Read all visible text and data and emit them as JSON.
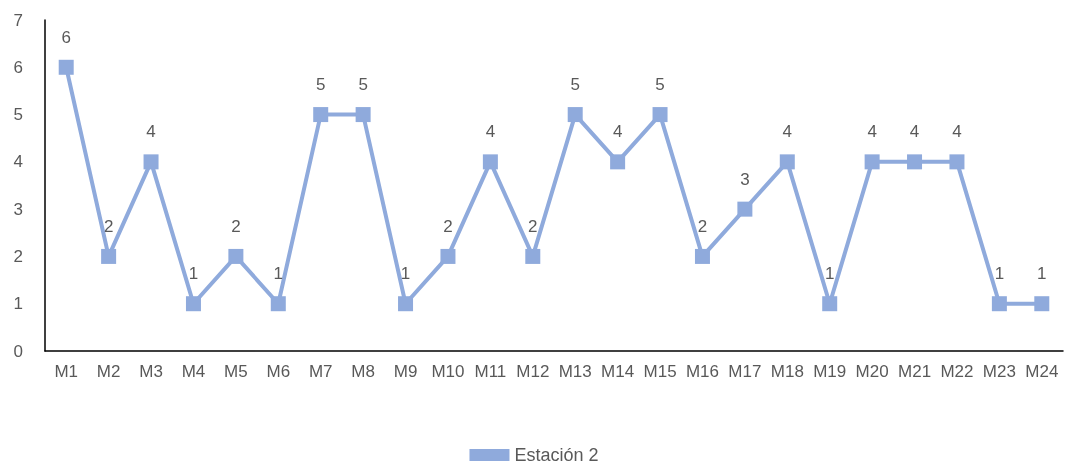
{
  "chart_data": {
    "type": "line",
    "categories": [
      "M1",
      "M2",
      "M3",
      "M4",
      "M5",
      "M6",
      "M7",
      "M8",
      "M9",
      "M10",
      "M11",
      "M12",
      "M13",
      "M14",
      "M15",
      "M16",
      "M17",
      "M18",
      "M19",
      "M20",
      "M21",
      "M22",
      "M23",
      "M24"
    ],
    "series": [
      {
        "name": "Estación 2",
        "color": "#8faadc",
        "values": [
          6,
          2,
          4,
          1,
          2,
          1,
          5,
          5,
          1,
          2,
          4,
          2,
          5,
          4,
          5,
          2,
          3,
          4,
          1,
          4,
          4,
          4,
          1,
          1
        ]
      }
    ],
    "ylim": [
      0,
      7
    ],
    "yticks": [
      0,
      1,
      2,
      3,
      4,
      5,
      6,
      7
    ],
    "grid": false,
    "legend": "bottom",
    "marker": "square",
    "line_style": "solid",
    "data_labels": true
  }
}
